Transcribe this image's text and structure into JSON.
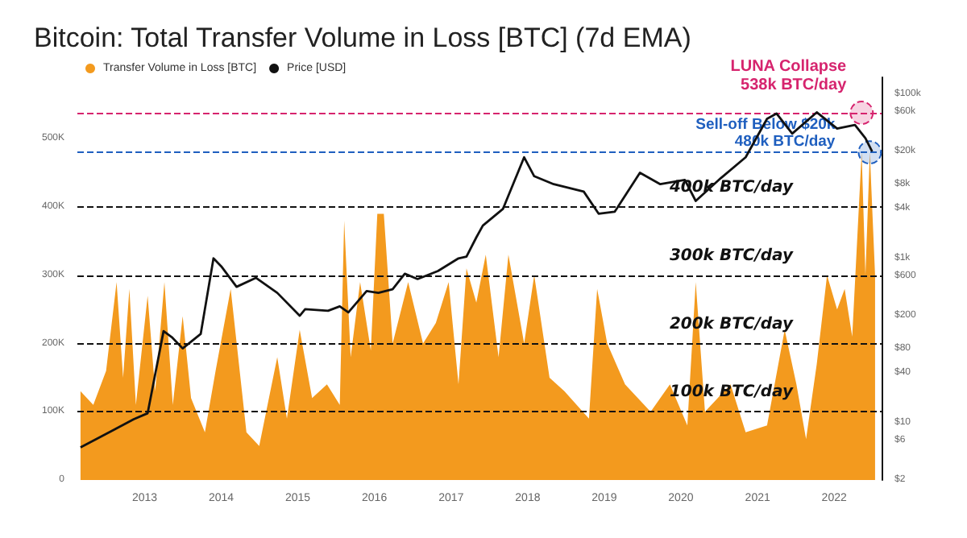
{
  "chart_data": {
    "type": "area",
    "title": "Bitcoin: Total Transfer Volume in Loss [BTC] (7d EMA)",
    "xlim": [
      "2012-02-15",
      "2022-08-15"
    ],
    "xticks": [
      {
        "value": "2013-01-01",
        "label": "2013"
      },
      {
        "value": "2014-01-01",
        "label": "2014"
      },
      {
        "value": "2015-01-01",
        "label": "2015"
      },
      {
        "value": "2016-01-01",
        "label": "2016"
      },
      {
        "value": "2017-01-01",
        "label": "2017"
      },
      {
        "value": "2018-01-01",
        "label": "2018"
      },
      {
        "value": "2019-01-01",
        "label": "2019"
      },
      {
        "value": "2020-01-01",
        "label": "2020"
      },
      {
        "value": "2021-01-01",
        "label": "2021"
      },
      {
        "value": "2022-01-01",
        "label": "2022"
      }
    ],
    "ylim": [
      0,
      590000
    ],
    "yticks": [
      0,
      {
        "value": 100000,
        "label": "100K"
      },
      {
        "value": 200000,
        "label": "200K"
      },
      {
        "value": 300000,
        "label": "300K"
      },
      {
        "value": 400000,
        "label": "400K"
      },
      {
        "value": 500000,
        "label": "500K"
      }
    ],
    "y2lim": [
      2,
      160000
    ],
    "y2ticks": [
      {
        "value": 2,
        "label": "$2"
      },
      {
        "value": 6,
        "label": "$6"
      },
      {
        "value": 10,
        "label": "$10"
      },
      {
        "value": 40,
        "label": "$40"
      },
      {
        "value": 80,
        "label": "$80"
      },
      {
        "value": 200,
        "label": "$200"
      },
      {
        "value": 600,
        "label": "$600"
      },
      {
        "value": 1000,
        "label": "$1k"
      },
      {
        "value": 4000,
        "label": "$4k"
      },
      {
        "value": 8000,
        "label": "$8k"
      },
      {
        "value": 20000,
        "label": "$20k"
      },
      {
        "value": 60000,
        "label": "$60k"
      },
      {
        "value": 100000,
        "label": "$100k"
      }
    ],
    "log": "y2",
    "legend": "top left",
    "series": [
      {
        "name": "Transfer Volume in Loss [BTC]",
        "color": "#f39a1e",
        "x": [
          "2012-03-01",
          "2012-05-01",
          "2012-07-01",
          "2012-08-20",
          "2012-09-20",
          "2012-10-20",
          "2012-11-20",
          "2013-01-15",
          "2013-02-20",
          "2013-04-05",
          "2013-05-15",
          "2013-07-01",
          "2013-08-10",
          "2013-10-15",
          "2013-12-05",
          "2014-02-15",
          "2014-05-01",
          "2014-07-01",
          "2014-09-25",
          "2014-11-10",
          "2015-01-10",
          "2015-03-10",
          "2015-05-20",
          "2015-07-20",
          "2015-08-10",
          "2015-09-10",
          "2015-10-25",
          "2015-12-15",
          "2016-01-15",
          "2016-02-15",
          "2016-03-28",
          "2016-06-10",
          "2016-08-20",
          "2016-10-20",
          "2016-12-20",
          "2017-02-05",
          "2017-03-15",
          "2017-05-01",
          "2017-06-15",
          "2017-08-15",
          "2017-10-01",
          "2017-12-15",
          "2018-02-01",
          "2018-04-15",
          "2018-06-25",
          "2018-10-20",
          "2018-11-28",
          "2019-01-15",
          "2019-04-10",
          "2019-08-10",
          "2019-11-10",
          "2020-02-01",
          "2020-03-12",
          "2020-04-25",
          "2020-08-25",
          "2020-11-05",
          "2021-02-15",
          "2021-05-10",
          "2021-07-05",
          "2021-08-20",
          "2021-10-10",
          "2021-11-28",
          "2022-01-15",
          "2022-02-20",
          "2022-03-28",
          "2022-05-12",
          "2022-05-30",
          "2022-06-20",
          "2022-07-15"
        ],
        "values": [
          130000,
          110000,
          160000,
          290000,
          150000,
          280000,
          110000,
          270000,
          130000,
          290000,
          110000,
          240000,
          120000,
          70000,
          160000,
          280000,
          70000,
          50000,
          180000,
          90000,
          220000,
          120000,
          140000,
          110000,
          380000,
          180000,
          290000,
          190000,
          390000,
          390000,
          200000,
          290000,
          200000,
          230000,
          290000,
          140000,
          310000,
          260000,
          330000,
          180000,
          330000,
          200000,
          300000,
          150000,
          130000,
          90000,
          280000,
          200000,
          140000,
          100000,
          140000,
          80000,
          290000,
          100000,
          140000,
          70000,
          80000,
          220000,
          140000,
          60000,
          170000,
          300000,
          250000,
          280000,
          210000,
          480000,
          300000,
          480000,
          300000
        ]
      },
      {
        "name": "Price [USD]",
        "type": "line",
        "axis": "y2",
        "color": "#111111",
        "x": [
          "2012-03-01",
          "2012-08-01",
          "2012-11-10",
          "2013-01-15",
          "2013-04-01",
          "2013-05-10",
          "2013-07-01",
          "2013-09-25",
          "2013-11-25",
          "2014-01-01",
          "2014-03-15",
          "2014-06-15",
          "2014-09-25",
          "2015-01-10",
          "2015-02-05",
          "2015-05-25",
          "2015-07-20",
          "2015-08-30",
          "2015-11-25",
          "2016-01-20",
          "2016-03-28",
          "2016-05-25",
          "2016-07-25",
          "2016-10-30",
          "2017-02-05",
          "2017-03-15",
          "2017-05-01",
          "2017-06-01",
          "2017-09-05",
          "2017-12-15",
          "2018-02-01",
          "2018-05-05",
          "2018-09-25",
          "2018-12-05",
          "2019-02-20",
          "2019-06-20",
          "2019-09-25",
          "2020-01-20",
          "2020-03-12",
          "2020-07-10",
          "2020-11-05",
          "2021-02-15",
          "2021-04-01",
          "2021-06-15",
          "2021-10-10",
          "2022-01-15",
          "2022-04-10",
          "2022-05-30",
          "2022-07-01"
        ],
        "values": [
          5,
          8,
          11,
          13,
          130,
          110,
          80,
          120,
          1000,
          800,
          450,
          580,
          380,
          200,
          240,
          230,
          260,
          220,
          400,
          380,
          420,
          650,
          560,
          700,
          1000,
          1050,
          1800,
          2500,
          4000,
          17000,
          10000,
          8000,
          6500,
          3500,
          3700,
          11000,
          8000,
          9000,
          5000,
          9500,
          17000,
          50000,
          58000,
          33000,
          60000,
          38000,
          42000,
          29000,
          20000
        ]
      }
    ],
    "ref_lines": [
      {
        "axis": "y",
        "value": 100000,
        "label": "100k BTC/day",
        "color": "#111111",
        "line_style": "dashed"
      },
      {
        "axis": "y",
        "value": 200000,
        "label": "200k BTC/day",
        "color": "#111111",
        "line_style": "dashed"
      },
      {
        "axis": "y",
        "value": 300000,
        "label": "300k BTC/day",
        "color": "#111111",
        "line_style": "dashed"
      },
      {
        "axis": "y",
        "value": 400000,
        "label": "400k BTC/day",
        "color": "#111111",
        "line_style": "dashed"
      },
      {
        "axis": "y",
        "value": 480000,
        "color": "#1f5fbf",
        "line_style": "dashed"
      },
      {
        "axis": "y",
        "value": 538000,
        "color": "#d6246e",
        "line_style": "dashed"
      }
    ],
    "annotations": [
      {
        "text": "LUNA Collapse\n538k BTC/day",
        "x": "2022-05-12",
        "y": 538000
      },
      {
        "text": "Sell-off Below $20k\n480k BTC/day",
        "x": "2022-06-20",
        "y": 480000
      }
    ]
  }
}
